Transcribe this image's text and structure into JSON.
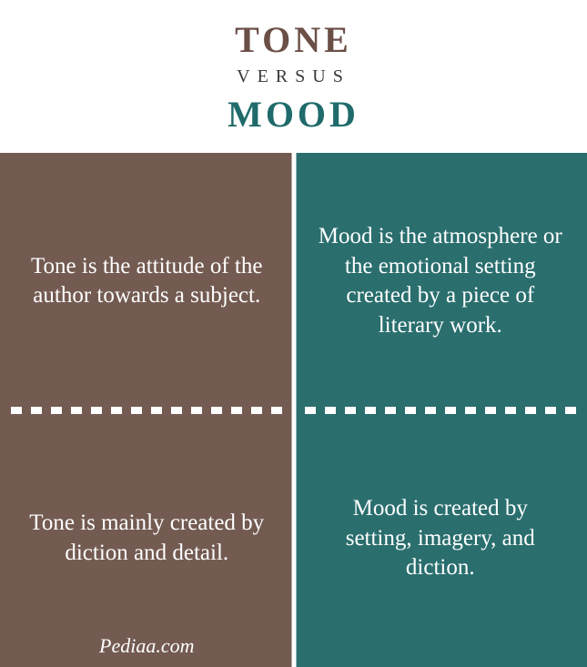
{
  "header": {
    "title_a": "TONE",
    "versus": "VERSUS",
    "title_b": "MOOD",
    "title_a_color": "#6b4f47",
    "title_b_color": "#1f6b6b",
    "versus_color": "#3a3a3a",
    "title_fontsize": 40,
    "versus_fontsize": 20
  },
  "grid": {
    "left_bg": "#735b52",
    "right_bg": "#2a6e6e",
    "divider_color": "#ffffff",
    "dash_color": "#ffffff",
    "text_color": "#ffffff",
    "cell_fontsize": 25,
    "cells": {
      "tl": "Tone is the attitude of the author towards a subject.",
      "tr": "Mood is the atmosphere or the emotional setting created by a piece of literary work.",
      "bl": "Tone is mainly created by diction and detail.",
      "br": "Mood is created by setting, imagery, and diction."
    }
  },
  "footer": {
    "text": "Pediaa.com",
    "color": "#ffffff",
    "fontsize": 22
  }
}
